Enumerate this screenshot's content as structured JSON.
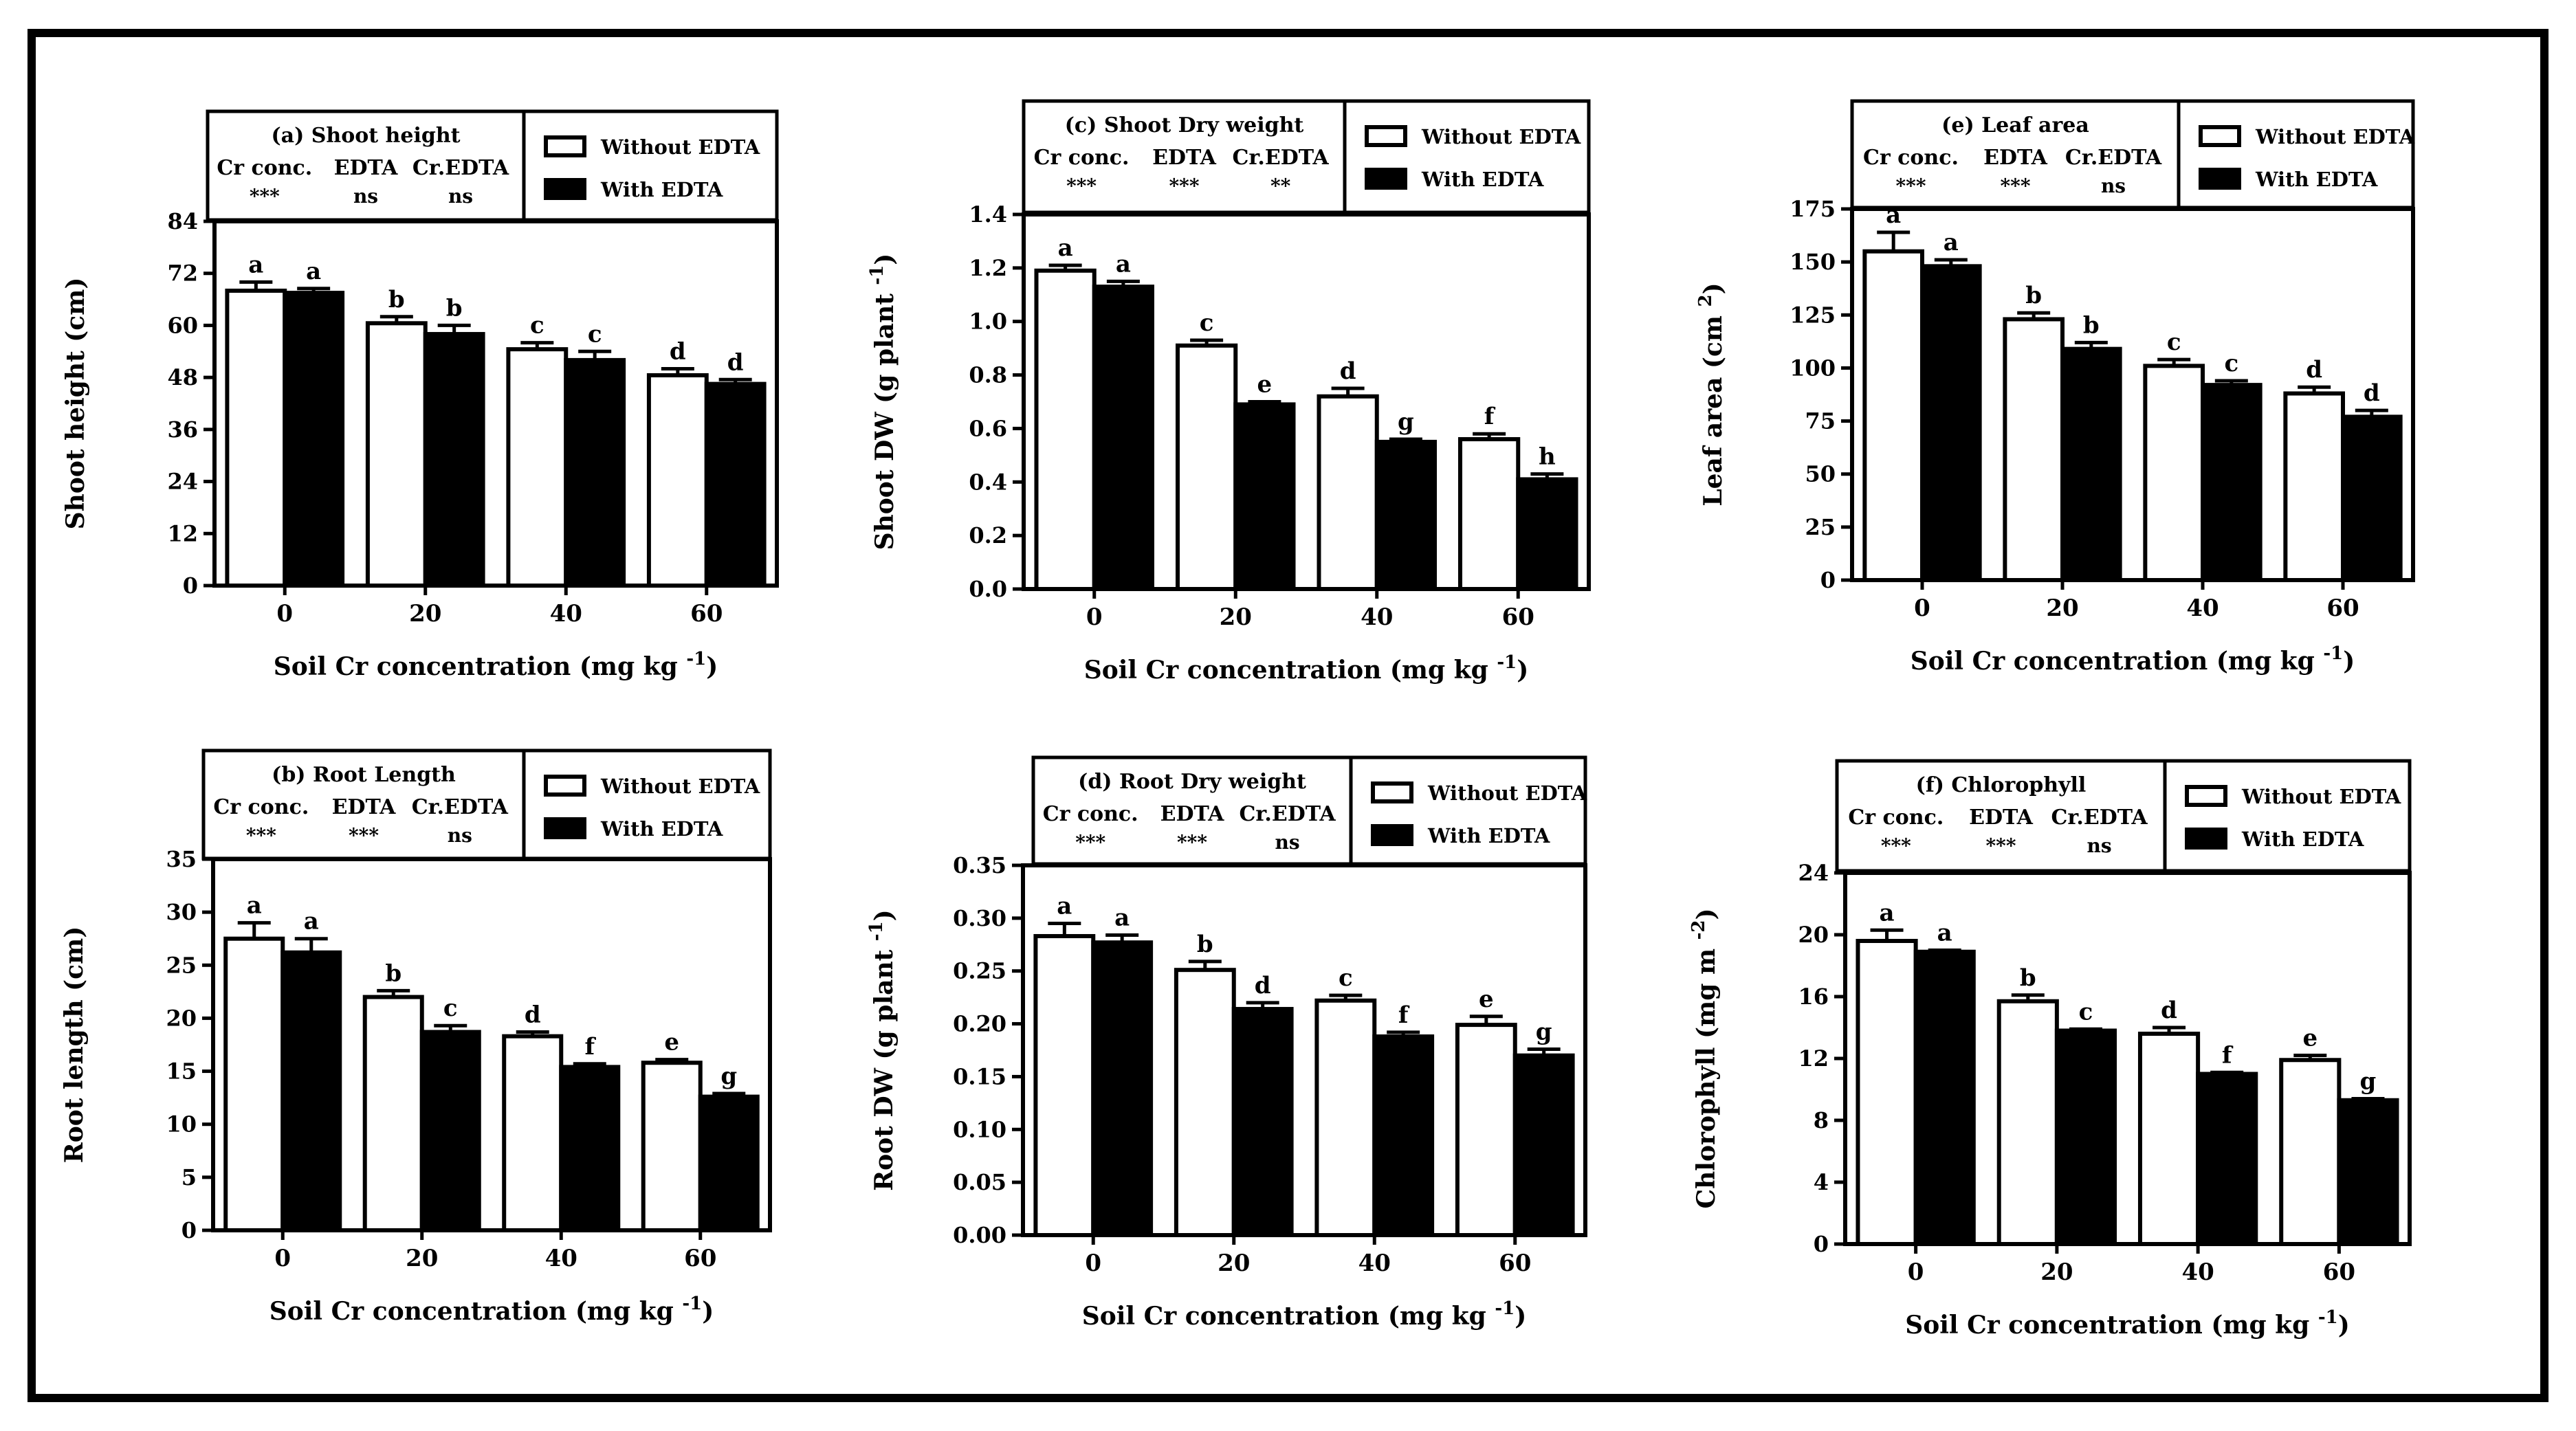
{
  "colors": {
    "without": "#ffffff",
    "with": "#000000",
    "axis": "#000000"
  },
  "chart_data": [
    {
      "id": "a",
      "type": "bar",
      "title": "(a) Shoot height",
      "xlabel": "Soil Cr concentration (mg kg -1)",
      "ylabel": "Shoot height (cm)",
      "categories": [
        "0",
        "20",
        "40",
        "60"
      ],
      "series": [
        {
          "name": "Without EDTA",
          "values": [
            68,
            60.5,
            54.5,
            48.5
          ],
          "errors": [
            2.0,
            1.5,
            1.5,
            1.5
          ],
          "letters": [
            "a",
            "b",
            "c",
            "d"
          ]
        },
        {
          "name": "With EDTA",
          "values": [
            67.5,
            58,
            52,
            46.5
          ],
          "errors": [
            1.0,
            2.0,
            2.0,
            1.0
          ],
          "letters": [
            "a",
            "b",
            "c",
            "d"
          ]
        }
      ],
      "ylim": [
        0,
        84
      ],
      "yticks": [
        "0",
        "12",
        "24",
        "36",
        "48",
        "60",
        "72",
        "84"
      ],
      "stats": {
        "headers": [
          "Cr conc.",
          "EDTA",
          "Cr.EDTA"
        ],
        "values": [
          "***",
          "ns",
          "ns"
        ]
      },
      "legend": [
        "Without EDTA",
        "With EDTA"
      ]
    },
    {
      "id": "b",
      "type": "bar",
      "title": "(b) Root Length",
      "xlabel": "Soil Cr concentration (mg kg -1)",
      "ylabel": "Root length (cm)",
      "categories": [
        "0",
        "20",
        "40",
        "60"
      ],
      "series": [
        {
          "name": "Without EDTA",
          "values": [
            27.5,
            22,
            18.3,
            15.8
          ],
          "errors": [
            1.5,
            0.6,
            0.4,
            0.3
          ],
          "letters": [
            "a",
            "b",
            "d",
            "e"
          ]
        },
        {
          "name": "With EDTA",
          "values": [
            26.2,
            18.7,
            15.4,
            12.6
          ],
          "errors": [
            1.3,
            0.6,
            0.3,
            0.3
          ],
          "letters": [
            "a",
            "c",
            "f",
            "g"
          ]
        }
      ],
      "ylim": [
        0,
        35
      ],
      "yticks": [
        "0",
        "5",
        "10",
        "15",
        "20",
        "25",
        "30",
        "35"
      ],
      "stats": {
        "headers": [
          "Cr conc.",
          "EDTA",
          "Cr.EDTA"
        ],
        "values": [
          "***",
          "***",
          "ns"
        ]
      },
      "legend": [
        "Without EDTA",
        "With EDTA"
      ]
    },
    {
      "id": "c",
      "type": "bar",
      "title": "(c) Shoot Dry weight",
      "xlabel": "Soil Cr concentration (mg kg -1)",
      "ylabel": "Shoot DW (g plant -1)",
      "categories": [
        "0",
        "20",
        "40",
        "60"
      ],
      "series": [
        {
          "name": "Without EDTA",
          "values": [
            1.19,
            0.91,
            0.72,
            0.56
          ],
          "errors": [
            0.02,
            0.02,
            0.03,
            0.02
          ],
          "letters": [
            "a",
            "c",
            "d",
            "f"
          ]
        },
        {
          "name": "With EDTA",
          "values": [
            1.13,
            0.69,
            0.55,
            0.41
          ],
          "errors": [
            0.02,
            0.01,
            0.01,
            0.02
          ],
          "letters": [
            "a",
            "e",
            "g",
            "h"
          ]
        }
      ],
      "ylim": [
        0,
        1.4
      ],
      "yticks": [
        "0.0",
        "0.2",
        "0.4",
        "0.6",
        "0.8",
        "1.0",
        "1.2",
        "1.4"
      ],
      "stats": {
        "headers": [
          "Cr conc.",
          "EDTA",
          "Cr.EDTA"
        ],
        "values": [
          "***",
          "***",
          "**"
        ]
      },
      "legend": [
        "Without EDTA",
        "With EDTA"
      ]
    },
    {
      "id": "d",
      "type": "bar",
      "title": "(d) Root Dry weight",
      "xlabel": "Soil Cr concentration (mg kg -1)",
      "ylabel": "Root DW (g plant -1)",
      "categories": [
        "0",
        "20",
        "40",
        "60"
      ],
      "series": [
        {
          "name": "Without EDTA",
          "values": [
            0.283,
            0.251,
            0.222,
            0.199
          ],
          "errors": [
            0.012,
            0.008,
            0.005,
            0.008
          ],
          "letters": [
            "a",
            "b",
            "c",
            "e"
          ]
        },
        {
          "name": "With EDTA",
          "values": [
            0.277,
            0.214,
            0.188,
            0.17
          ],
          "errors": [
            0.007,
            0.006,
            0.004,
            0.006
          ],
          "letters": [
            "a",
            "d",
            "f",
            "g"
          ]
        }
      ],
      "ylim": [
        0,
        0.35
      ],
      "yticks": [
        "0.00",
        "0.05",
        "0.10",
        "0.15",
        "0.20",
        "0.25",
        "0.30",
        "0.35"
      ],
      "stats": {
        "headers": [
          "Cr conc.",
          "EDTA",
          "Cr.EDTA"
        ],
        "values": [
          "***",
          "***",
          "ns"
        ]
      },
      "legend": [
        "Without EDTA",
        "With EDTA"
      ]
    },
    {
      "id": "e",
      "type": "bar",
      "title": "(e) Leaf area",
      "xlabel": "Soil Cr concentration (mg kg -1)",
      "ylabel": "Leaf area (cm 2)",
      "categories": [
        "0",
        "20",
        "40",
        "60"
      ],
      "series": [
        {
          "name": "Without EDTA",
          "values": [
            155,
            123,
            101,
            88
          ],
          "errors": [
            9,
            3,
            3,
            3
          ],
          "letters": [
            "a",
            "b",
            "c",
            "d"
          ]
        },
        {
          "name": "With EDTA",
          "values": [
            148,
            109,
            92,
            77
          ],
          "errors": [
            3,
            3,
            2,
            3
          ],
          "letters": [
            "a",
            "b",
            "c",
            "d"
          ]
        }
      ],
      "ylim": [
        0,
        175
      ],
      "yticks": [
        "0",
        "25",
        "50",
        "75",
        "100",
        "125",
        "150",
        "175"
      ],
      "stats": {
        "headers": [
          "Cr conc.",
          "EDTA",
          "Cr.EDTA"
        ],
        "values": [
          "***",
          "***",
          "ns"
        ]
      },
      "legend": [
        "Without EDTA",
        "With EDTA"
      ]
    },
    {
      "id": "f",
      "type": "bar",
      "title": "(f) Chlorophyll",
      "xlabel": "Soil Cr concentration (mg kg -1)",
      "ylabel": "Chlorophyll (mg m -2)",
      "categories": [
        "0",
        "20",
        "40",
        "60"
      ],
      "series": [
        {
          "name": "Without EDTA",
          "values": [
            19.6,
            15.7,
            13.6,
            11.9
          ],
          "errors": [
            0.7,
            0.4,
            0.4,
            0.3
          ],
          "letters": [
            "a",
            "b",
            "d",
            "e"
          ]
        },
        {
          "name": "With EDTA",
          "values": [
            18.9,
            13.8,
            11.0,
            9.3
          ],
          "errors": [
            0.1,
            0.1,
            0.1,
            0.1
          ],
          "letters": [
            "a",
            "c",
            "f",
            "g"
          ]
        }
      ],
      "ylim": [
        0,
        24
      ],
      "yticks": [
        "0",
        "4",
        "8",
        "12",
        "16",
        "20",
        "24"
      ],
      "stats": {
        "headers": [
          "Cr conc.",
          "EDTA",
          "Cr.EDTA"
        ],
        "values": [
          "***",
          "***",
          "ns"
        ]
      },
      "legend": [
        "Without EDTA",
        "With EDTA"
      ]
    }
  ]
}
